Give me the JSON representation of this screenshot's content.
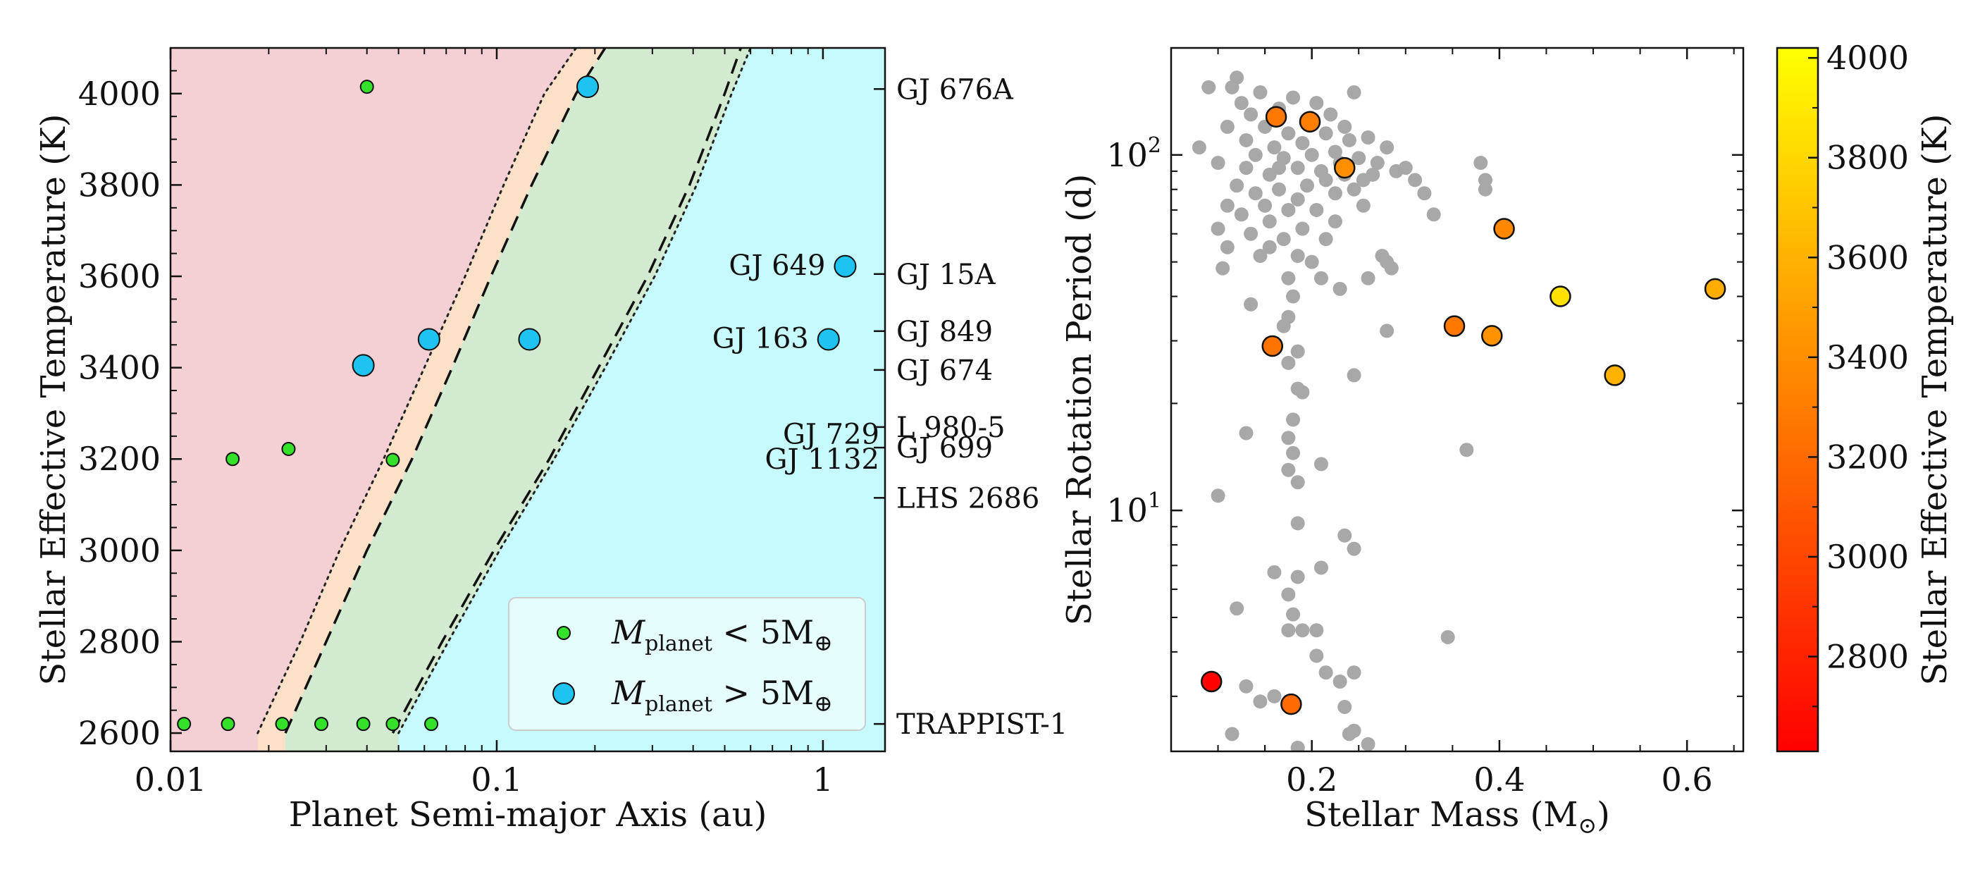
{
  "colors": {
    "small_planet": "#35e02a",
    "large_planet": "#1ec3f2",
    "region_red": "#f4d0d5",
    "region_orange": "#fde0c8",
    "region_green": "#d2ebd0",
    "region_cyan": "#c7fafc",
    "field_star": "#a8a8a8",
    "axis": "#111111"
  },
  "chart_data": [
    {
      "type": "scatter",
      "xlabel": "Planet Semi-major Axis (au)",
      "ylabel": "Stellar Effective Temperature (K)",
      "xscale": "log",
      "xlim": [
        0.01,
        1.55
      ],
      "ylim": [
        2560,
        4100
      ],
      "xticks": [
        {
          "v": 0.01,
          "label": "0.01"
        },
        {
          "v": 0.1,
          "label": "0.1"
        },
        {
          "v": 1,
          "label": "1"
        }
      ],
      "yticks": [
        2600,
        2800,
        3000,
        3200,
        3400,
        3600,
        3800,
        4000
      ],
      "grid": false,
      "legend": {
        "position": "bottom-right",
        "entries": [
          {
            "series": "small",
            "prefix": "M",
            "sub": "planet",
            "op": " < 5M",
            "sym": "⊕"
          },
          {
            "series": "large",
            "prefix": "M",
            "sub": "planet",
            "op": " > 5M",
            "sym": "⊕"
          }
        ]
      },
      "zones": {
        "temps": [
          2600,
          2800,
          3000,
          3200,
          3400,
          3600,
          3800,
          4000,
          4100
        ],
        "inner_dotted": [
          0.0185,
          0.025,
          0.033,
          0.045,
          0.06,
          0.08,
          0.105,
          0.14,
          0.175
        ],
        "inner_dashed": [
          0.0225,
          0.03,
          0.04,
          0.055,
          0.073,
          0.096,
          0.128,
          0.175,
          0.215
        ],
        "outer_dashed": [
          0.048,
          0.068,
          0.098,
          0.145,
          0.205,
          0.29,
          0.39,
          0.5,
          0.56
        ],
        "outer_dotted": [
          0.05,
          0.071,
          0.102,
          0.15,
          0.215,
          0.305,
          0.41,
          0.525,
          0.6
        ]
      },
      "series": [
        {
          "name": "small",
          "points": [
            [
              0.011,
              2620
            ],
            [
              0.015,
              2620
            ],
            [
              0.022,
              2620
            ],
            [
              0.029,
              2620
            ],
            [
              0.039,
              2620
            ],
            [
              0.048,
              2620
            ],
            [
              0.063,
              2620
            ],
            [
              0.0155,
              3200
            ],
            [
              0.023,
              3222
            ],
            [
              0.048,
              3198
            ],
            [
              0.04,
              4015
            ]
          ]
        },
        {
          "name": "large",
          "points": [
            [
              0.039,
              3405
            ],
            [
              0.062,
              3462
            ],
            [
              0.126,
              3462
            ],
            [
              0.19,
              4015
            ],
            [
              1.04,
              3462
            ],
            [
              1.17,
              3622
            ]
          ]
        }
      ],
      "inner_annotations": [
        {
          "text": "GJ 649",
          "x": 1.17,
          "y": 3625
        },
        {
          "text": "GJ 163",
          "x": 1.04,
          "y": 3465
        },
        {
          "text": "GJ 729",
          "x": 1.55,
          "y": 3255
        },
        {
          "text": "GJ 1132",
          "x": 1.55,
          "y": 3200
        }
      ],
      "right_labels": [
        {
          "text": "GJ 676A",
          "y": 4010
        },
        {
          "text": "GJ 15A",
          "y": 3605
        },
        {
          "text": "GJ 849",
          "y": 3480
        },
        {
          "text": "GJ 674",
          "y": 3395
        },
        {
          "text": "L 980-5",
          "y": 3270
        },
        {
          "text": "GJ 699",
          "y": 3225
        },
        {
          "text": "LHS 2686",
          "y": 3115
        },
        {
          "text": "TRAPPIST-1",
          "y": 2620
        }
      ]
    },
    {
      "type": "scatter",
      "xlabel": "Stellar Mass (M",
      "xlabel_sym": "⊙",
      "xlabel_close": ")",
      "ylabel": "Stellar Rotation Period (d)",
      "yscale": "log",
      "xlim": [
        0.05,
        0.66
      ],
      "ylim": [
        2.1,
        200
      ],
      "xticks": [
        {
          "v": 0.2,
          "label": "0.2"
        },
        {
          "v": 0.4,
          "label": "0.4"
        },
        {
          "v": 0.6,
          "label": "0.6"
        }
      ],
      "yticks": [
        {
          "v": 10,
          "base": "10",
          "exp": "1"
        },
        {
          "v": 100,
          "base": "10",
          "exp": "2"
        }
      ],
      "grid": false,
      "colorbar": {
        "label": "Stellar Effective Temperature (K)",
        "range": [
          2610,
          4020
        ],
        "ticks": [
          2800,
          3000,
          3200,
          3400,
          3600,
          3800,
          4000
        ]
      },
      "field_stars": [
        [
          0.08,
          105
        ],
        [
          0.09,
          155
        ],
        [
          0.1,
          95
        ],
        [
          0.11,
          120
        ],
        [
          0.115,
          155
        ],
        [
          0.12,
          165
        ],
        [
          0.125,
          140
        ],
        [
          0.13,
          110
        ],
        [
          0.135,
          130
        ],
        [
          0.14,
          100
        ],
        [
          0.145,
          150
        ],
        [
          0.15,
          120
        ],
        [
          0.155,
          88
        ],
        [
          0.16,
          105
        ],
        [
          0.165,
          135
        ],
        [
          0.17,
          98
        ],
        [
          0.175,
          115
        ],
        [
          0.18,
          145
        ],
        [
          0.185,
          92
        ],
        [
          0.19,
          108
        ],
        [
          0.195,
          125
        ],
        [
          0.2,
          100
        ],
        [
          0.205,
          140
        ],
        [
          0.21,
          90
        ],
        [
          0.215,
          115
        ],
        [
          0.22,
          130
        ],
        [
          0.225,
          102
        ],
        [
          0.23,
          95
        ],
        [
          0.235,
          120
        ],
        [
          0.24,
          110
        ],
        [
          0.245,
          150
        ],
        [
          0.25,
          98
        ],
        [
          0.255,
          85
        ],
        [
          0.26,
          112
        ],
        [
          0.27,
          95
        ],
        [
          0.28,
          105
        ],
        [
          0.29,
          90
        ],
        [
          0.3,
          92
        ],
        [
          0.31,
          85
        ],
        [
          0.32,
          78
        ],
        [
          0.14,
          78
        ],
        [
          0.15,
          72
        ],
        [
          0.155,
          65
        ],
        [
          0.165,
          80
        ],
        [
          0.175,
          70
        ],
        [
          0.185,
          75
        ],
        [
          0.195,
          82
        ],
        [
          0.205,
          70
        ],
        [
          0.215,
          85
        ],
        [
          0.225,
          78
        ],
        [
          0.235,
          88
        ],
        [
          0.245,
          80
        ],
        [
          0.255,
          72
        ],
        [
          0.265,
          88
        ],
        [
          0.165,
          92
        ],
        [
          0.12,
          82
        ],
        [
          0.13,
          92
        ],
        [
          0.11,
          72
        ],
        [
          0.1,
          62
        ],
        [
          0.105,
          48
        ],
        [
          0.11,
          55
        ],
        [
          0.125,
          68
        ],
        [
          0.135,
          60
        ],
        [
          0.145,
          52
        ],
        [
          0.155,
          55
        ],
        [
          0.17,
          58
        ],
        [
          0.175,
          45
        ],
        [
          0.18,
          40
        ],
        [
          0.185,
          52
        ],
        [
          0.19,
          62
        ],
        [
          0.2,
          50
        ],
        [
          0.21,
          45
        ],
        [
          0.215,
          58
        ],
        [
          0.225,
          65
        ],
        [
          0.23,
          42
        ],
        [
          0.26,
          45
        ],
        [
          0.275,
          52
        ],
        [
          0.28,
          50
        ],
        [
          0.285,
          48
        ],
        [
          0.33,
          68
        ],
        [
          0.38,
          95
        ],
        [
          0.385,
          85
        ],
        [
          0.385,
          80
        ],
        [
          0.135,
          38
        ],
        [
          0.17,
          33
        ],
        [
          0.175,
          35
        ],
        [
          0.28,
          32
        ],
        [
          0.185,
          28
        ],
        [
          0.175,
          26
        ],
        [
          0.245,
          24
        ],
        [
          0.185,
          22
        ],
        [
          0.19,
          21.5
        ],
        [
          0.18,
          18
        ],
        [
          0.175,
          16
        ],
        [
          0.13,
          16.5
        ],
        [
          0.18,
          14.5
        ],
        [
          0.365,
          14.8
        ],
        [
          0.175,
          13
        ],
        [
          0.185,
          12
        ],
        [
          0.21,
          13.5
        ],
        [
          0.1,
          11
        ],
        [
          0.185,
          9.2
        ],
        [
          0.235,
          8.5
        ],
        [
          0.245,
          7.8
        ],
        [
          0.16,
          6.7
        ],
        [
          0.185,
          6.5
        ],
        [
          0.21,
          6.9
        ],
        [
          0.175,
          5.8
        ],
        [
          0.12,
          5.3
        ],
        [
          0.18,
          5.1
        ],
        [
          0.19,
          4.6
        ],
        [
          0.205,
          4.6
        ],
        [
          0.175,
          4.6
        ],
        [
          0.345,
          4.4
        ],
        [
          0.205,
          3.9
        ],
        [
          0.215,
          3.5
        ],
        [
          0.245,
          3.5
        ],
        [
          0.13,
          3.2
        ],
        [
          0.23,
          3.3
        ],
        [
          0.145,
          2.9
        ],
        [
          0.16,
          3.0
        ],
        [
          0.235,
          2.8
        ],
        [
          0.115,
          2.35
        ],
        [
          0.24,
          2.35
        ],
        [
          0.245,
          2.4
        ],
        [
          0.185,
          2.15
        ],
        [
          0.26,
          2.2
        ]
      ],
      "highlighted_stars": [
        [
          0.093,
          3.3,
          2620
        ],
        [
          0.178,
          2.85,
          3200
        ],
        [
          0.158,
          29,
          3250
        ],
        [
          0.162,
          128,
          3280
        ],
        [
          0.198,
          124,
          3300
        ],
        [
          0.235,
          92,
          3400
        ],
        [
          0.352,
          33,
          3280
        ],
        [
          0.392,
          31,
          3420
        ],
        [
          0.405,
          62,
          3360
        ],
        [
          0.465,
          40,
          3850
        ],
        [
          0.523,
          24,
          3600
        ],
        [
          0.63,
          42,
          3560
        ]
      ]
    }
  ]
}
